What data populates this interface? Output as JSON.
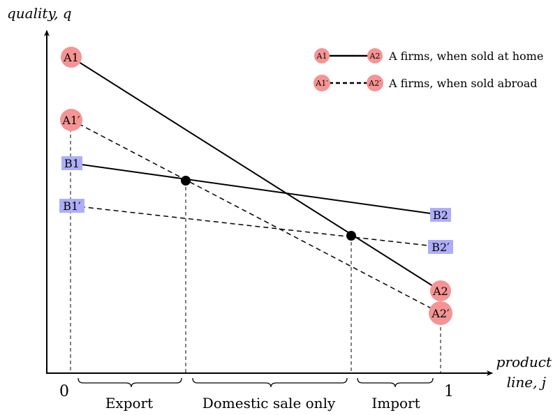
{
  "axes": {
    "y_label": "quality, q",
    "x_label_line1": "product",
    "x_label_line2": "line, j",
    "tick_zero": "0",
    "tick_one": "1"
  },
  "nodes": {
    "a1": "A1",
    "a2": "A2",
    "a1p": "A1′",
    "a2p": "A2′",
    "b1": "B1",
    "b2": "B2",
    "b1p": "B1′",
    "b2p": "B2′"
  },
  "legend": {
    "home": {
      "start": "A1",
      "end": "A2",
      "label": "A firms, when sold at home"
    },
    "abroad": {
      "start": "A1′",
      "end": "A2′",
      "label": "A firms, when sold abroad"
    }
  },
  "regions": {
    "export": "Export",
    "domestic": "Domestic sale only",
    "import": "Import"
  },
  "colors": {
    "a_node": "#f49494",
    "b_node": "#aeaef8"
  }
}
